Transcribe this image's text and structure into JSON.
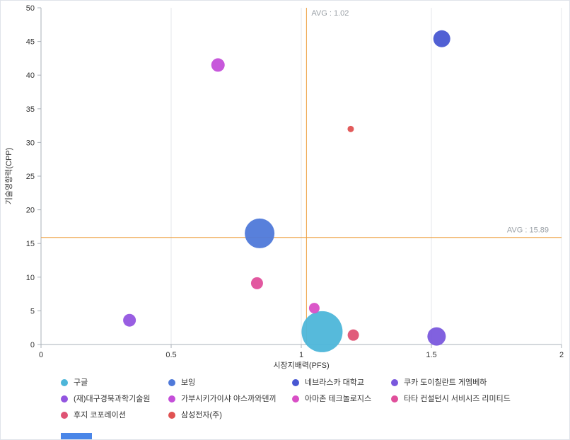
{
  "chart_data": {
    "type": "scatter",
    "subtype": "bubble",
    "xlabel": "시장지배력(PFS)",
    "ylabel": "기술영향력(CPP)",
    "xlim": [
      0,
      2
    ],
    "ylim": [
      0,
      50
    ],
    "x_ticks": [
      0,
      0.5,
      1,
      1.5,
      2
    ],
    "x_tick_labels": [
      "0",
      "0.5",
      "1",
      "1.5",
      "2"
    ],
    "y_ticks": [
      0,
      5,
      10,
      15,
      20,
      25,
      30,
      35,
      40,
      45,
      50
    ],
    "y_tick_labels": [
      "0",
      "5",
      "10",
      "15",
      "20",
      "25",
      "30",
      "35",
      "40",
      "45",
      "50"
    ],
    "grid": "vertical-gridlines-only",
    "legend_position": "bottom",
    "avg_line_color": "#ed9f3e",
    "avg_lines": {
      "x": {
        "value": 1.02,
        "label": "AVG : 1.02"
      },
      "y": {
        "value": 15.89,
        "label": "AVG : 15.89"
      }
    },
    "series": [
      {
        "name": "구글",
        "x": 1.08,
        "y": 1.9,
        "size": 29,
        "color": "#4db6d9"
      },
      {
        "name": "보잉",
        "x": 0.84,
        "y": 16.5,
        "size": 21,
        "color": "#4f79d9"
      },
      {
        "name": "네브라스카 대학교",
        "x": 1.54,
        "y": 45.4,
        "size": 12,
        "color": "#4857d2"
      },
      {
        "name": "쿠카 도이칠란트 게엠베하",
        "x": 1.52,
        "y": 1.2,
        "size": 13,
        "color": "#7a58dd"
      },
      {
        "name": "(재)대구경북과학기술원",
        "x": 0.34,
        "y": 3.6,
        "size": 9,
        "color": "#9355e0"
      },
      {
        "name": "가부시키가이샤 야스까와덴끼",
        "x": 0.68,
        "y": 41.5,
        "size": 9.5,
        "color": "#c44fd9"
      },
      {
        "name": "아마존 테크놀로지스",
        "x": 1.05,
        "y": 5.4,
        "size": 7.5,
        "color": "#d94fc6"
      },
      {
        "name": "타타 컨설턴시 서비시즈 리미티드",
        "x": 0.83,
        "y": 9.1,
        "size": 8.5,
        "color": "#e04f9b"
      },
      {
        "name": "후지 코포레이션",
        "x": 1.2,
        "y": 1.4,
        "size": 8,
        "color": "#df5374"
      },
      {
        "name": "삼성전자(주)",
        "x": 1.19,
        "y": 32,
        "size": 4.5,
        "color": "#e05252"
      }
    ]
  },
  "bottom_bar": {
    "color": "#4a86e8"
  }
}
